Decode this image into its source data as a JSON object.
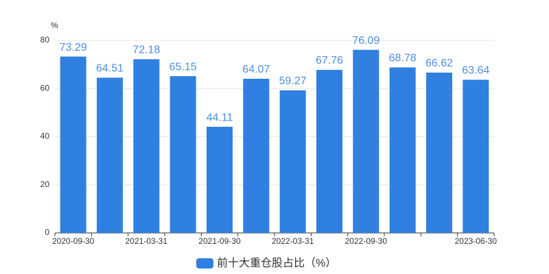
{
  "chart_data": {
    "type": "bar",
    "y_unit": "%",
    "categories": [
      "2020-09-30",
      null,
      "2021-03-31",
      null,
      "2021-09-30",
      null,
      "2022-03-31",
      null,
      "2022-09-30",
      null,
      null,
      "2023-06-30"
    ],
    "series": [
      {
        "name": "前十大重仓股占比（%）",
        "color": "#2f80e0",
        "values": [
          73.29,
          64.51,
          72.18,
          65.15,
          44.11,
          64.07,
          59.27,
          67.76,
          76.09,
          68.78,
          66.62,
          63.64
        ]
      }
    ],
    "ylim": [
      0,
      80
    ],
    "yticks": [
      0,
      20,
      40,
      60,
      80
    ],
    "legend": "bottom"
  }
}
